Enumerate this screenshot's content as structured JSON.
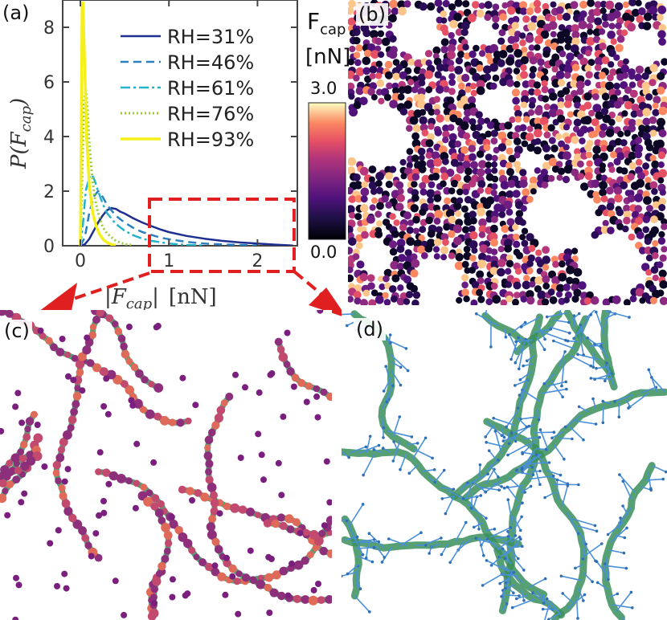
{
  "panels": {
    "a": "(a)",
    "b": "(b)",
    "c": "(c)",
    "d": "(d)"
  },
  "chart_data": {
    "type": "line",
    "title": "",
    "xlabel": "|F_cap| [nN]",
    "ylabel": "P(F_cap)",
    "xlim": [
      -0.2,
      2.45
    ],
    "ylim": [
      0,
      9
    ],
    "xticks": [
      0,
      1,
      2
    ],
    "yticks": [
      0,
      2,
      4,
      6,
      8
    ],
    "series": [
      {
        "name": "RH=31%",
        "color": "#1f2f8f",
        "dash": "",
        "width": 2.5,
        "x": [
          0.0,
          0.05,
          0.1,
          0.15,
          0.2,
          0.25,
          0.3,
          0.35,
          0.4,
          0.45,
          0.5,
          0.6,
          0.7,
          0.8,
          0.9,
          1.0,
          1.2,
          1.4,
          1.6,
          1.8,
          2.0,
          2.2,
          2.4
        ],
        "y": [
          0.0,
          0.05,
          0.25,
          0.55,
          0.85,
          1.1,
          1.3,
          1.38,
          1.35,
          1.25,
          1.18,
          1.0,
          0.85,
          0.72,
          0.6,
          0.5,
          0.36,
          0.26,
          0.18,
          0.12,
          0.08,
          0.04,
          0.01
        ]
      },
      {
        "name": "RH=46%",
        "color": "#2a7fc0",
        "dash": "10,6",
        "width": 2.5,
        "x": [
          0.0,
          0.05,
          0.1,
          0.15,
          0.2,
          0.25,
          0.3,
          0.35,
          0.4,
          0.5,
          0.6,
          0.7,
          0.8,
          0.9,
          1.0,
          1.2,
          1.4,
          1.6,
          1.8,
          2.0
        ],
        "y": [
          0.0,
          0.3,
          1.2,
          1.8,
          2.0,
          1.8,
          1.5,
          1.3,
          1.1,
          0.85,
          0.65,
          0.5,
          0.4,
          0.3,
          0.24,
          0.14,
          0.08,
          0.05,
          0.03,
          0.01
        ]
      },
      {
        "name": "RH=61%",
        "color": "#26b3c9",
        "dash": "12,4,3,4",
        "width": 2.5,
        "x": [
          0.0,
          0.03,
          0.06,
          0.1,
          0.13,
          0.16,
          0.2,
          0.25,
          0.3,
          0.4,
          0.5,
          0.6,
          0.7,
          0.8,
          1.0,
          1.2,
          1.4
        ],
        "y": [
          0.0,
          0.8,
          2.0,
          2.5,
          2.6,
          2.4,
          2.0,
          1.55,
          1.2,
          0.8,
          0.55,
          0.38,
          0.26,
          0.18,
          0.08,
          0.03,
          0.01
        ]
      },
      {
        "name": "RH=76%",
        "color": "#9ccc3a",
        "dash": "2,3",
        "width": 3,
        "x": [
          0.0,
          0.02,
          0.04,
          0.06,
          0.08,
          0.1,
          0.13,
          0.16,
          0.2,
          0.25,
          0.3,
          0.4,
          0.5,
          0.6
        ],
        "y": [
          0.0,
          2.5,
          5.2,
          5.8,
          5.0,
          3.8,
          2.6,
          1.8,
          1.2,
          0.7,
          0.45,
          0.18,
          0.06,
          0.02
        ]
      },
      {
        "name": "RH=93%",
        "color": "#f5f01c",
        "dash": "",
        "width": 3.5,
        "x": [
          0.0,
          0.01,
          0.02,
          0.03,
          0.05,
          0.07,
          0.1,
          0.14,
          0.18,
          0.22,
          0.26,
          0.3,
          0.35,
          0.4
        ],
        "y": [
          0.0,
          4.0,
          8.8,
          8.9,
          6.5,
          4.0,
          2.2,
          1.2,
          0.7,
          0.4,
          0.22,
          0.12,
          0.05,
          0.02
        ]
      }
    ]
  },
  "colorbar": {
    "title_main": "F",
    "title_sub": "cap",
    "unit": "[nN]",
    "max_label": "3.0",
    "min_label": "0.0"
  },
  "colors": {
    "highlight": "#e02020",
    "film": "#3a8f5c",
    "arrow": "#4a90d9"
  }
}
